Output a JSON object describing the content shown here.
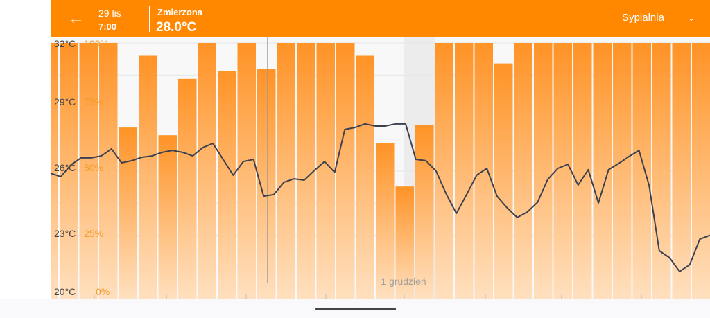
{
  "header": {
    "back_icon": "arrow-left-icon",
    "date": "29 lis",
    "time": "7:00",
    "measured_label": "Zmierzona",
    "measured_value": "28.0°C",
    "room": "Sypialnia",
    "room_icon": "chevron-down-icon"
  },
  "colors": {
    "accent": "#ff8800",
    "line": "#3c4150",
    "percent_label": "#f39a2a"
  },
  "chart_data": {
    "type": "bar+line",
    "temp_axis": {
      "ticks": [
        "32°C",
        "29°C",
        "26°C",
        "23°C",
        "20°C"
      ],
      "ylim": [
        20,
        32
      ]
    },
    "percent_axis": {
      "ticks": [
        "100%",
        "75%",
        "50%",
        "25%",
        "0%"
      ],
      "ylim": [
        0,
        100
      ]
    },
    "x_annotation": "1 grudzień",
    "bar_values": [
      100,
      100,
      100,
      100,
      67,
      95,
      64,
      86,
      100,
      89,
      100,
      90,
      100,
      100,
      100,
      100,
      95,
      61,
      44,
      68,
      100,
      100,
      100,
      92,
      100,
      100,
      100,
      100,
      100,
      100,
      100,
      100,
      100,
      100
    ],
    "temperature_values": [
      25.9,
      25.74,
      26.29,
      26.62,
      26.62,
      26.71,
      27.04,
      26.39,
      26.49,
      26.65,
      26.71,
      26.88,
      26.97,
      26.88,
      26.71,
      27.1,
      27.3,
      26.55,
      25.81,
      26.45,
      26.55,
      24.83,
      24.9,
      25.48,
      25.64,
      25.58,
      26.03,
      26.45,
      25.94,
      27.95,
      28.04,
      28.21,
      28.11,
      28.11,
      28.21,
      28.21,
      26.55,
      26.49,
      26.0,
      24.93,
      24.02,
      24.9,
      25.81,
      26.13,
      24.83,
      24.28,
      23.83,
      24.09,
      24.54,
      25.61,
      26.13,
      26.32,
      25.35,
      26.07,
      24.51,
      26.07,
      26.36,
      26.68,
      26.97,
      25.32,
      22.27,
      21.95,
      21.3,
      21.62,
      22.82,
      23.0
    ],
    "grid": true
  }
}
